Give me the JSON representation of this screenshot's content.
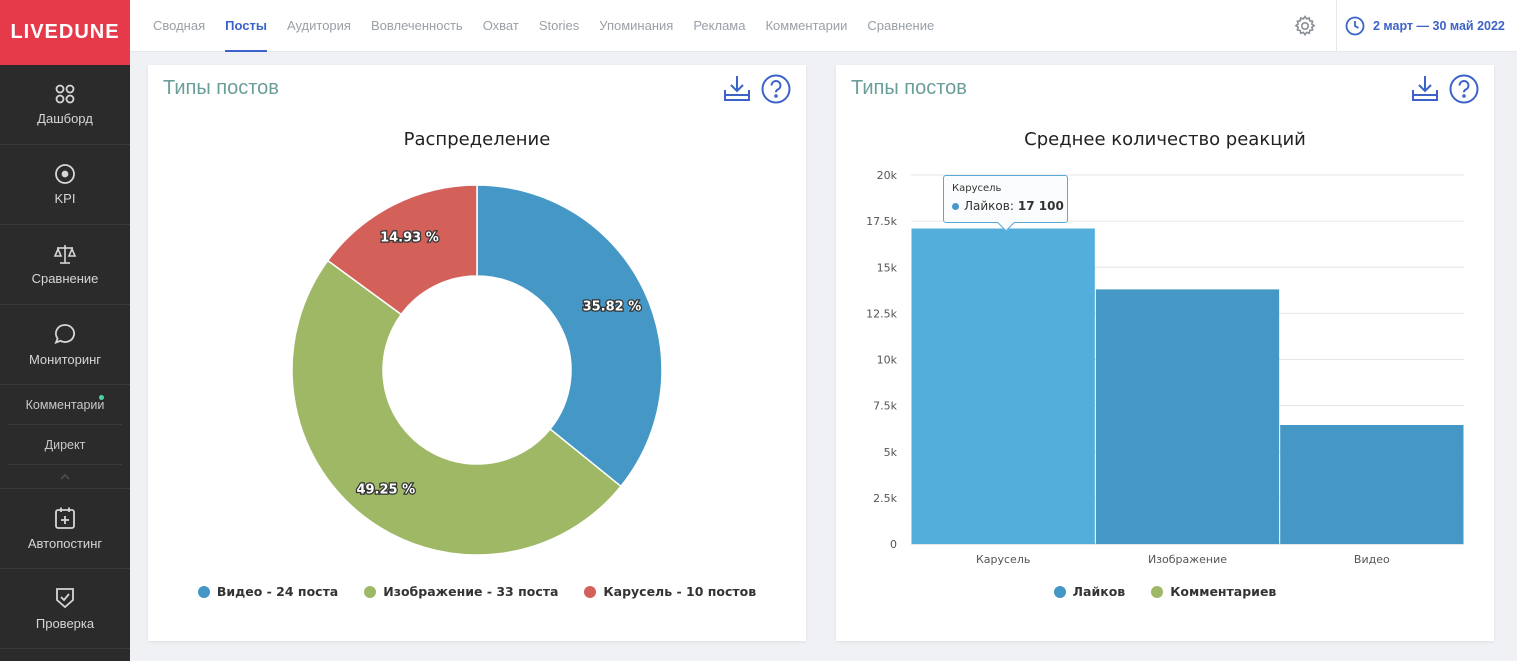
{
  "sidebar": {
    "logo": "LIVEDUNE",
    "items": [
      {
        "label": "Дашборд",
        "icon": "dashboard-icon"
      },
      {
        "label": "KPI",
        "icon": "target-icon"
      },
      {
        "label": "Сравнение",
        "icon": "scales-icon"
      },
      {
        "label": "Мониторинг",
        "icon": "chat-bubble-icon"
      }
    ],
    "sub_items": [
      {
        "label": "Комментарии",
        "has_dot": true
      },
      {
        "label": "Директ",
        "has_dot": false
      }
    ],
    "bottom_items": [
      {
        "label": "Автопостинг",
        "icon": "calendar-plus-icon"
      },
      {
        "label": "Проверка",
        "icon": "shield-check-icon"
      }
    ]
  },
  "topnav": {
    "tabs": [
      "Сводная",
      "Посты",
      "Аудитория",
      "Вовлеченность",
      "Охват",
      "Stories",
      "Упоминания",
      "Реклама",
      "Комментарии",
      "Сравнение"
    ],
    "active_tab": "Посты",
    "date_range": "2 март — 30 май 2022"
  },
  "card1": {
    "title": "Типы постов",
    "chart_title": "Распределение",
    "legend": [
      {
        "label": "Видео - 24 поста",
        "color": "#4598c6"
      },
      {
        "label": "Изображение - 33 поста",
        "color": "#9fb866"
      },
      {
        "label": "Карусель - 10 постов",
        "color": "#d4605a"
      }
    ]
  },
  "card2": {
    "title": "Типы постов",
    "chart_title": "Среднее количество реакций",
    "legend": [
      {
        "label": "Лайков",
        "color": "#4598c6"
      },
      {
        "label": "Комментариев",
        "color": "#9fb866"
      }
    ],
    "tooltip": {
      "category": "Карусель",
      "series": "Лайков:",
      "value": "17 100"
    }
  },
  "chart_data": [
    {
      "type": "pie",
      "title": "Распределение",
      "categories": [
        "Видео",
        "Изображение",
        "Карусель"
      ],
      "values": [
        35.82,
        49.25,
        14.93
      ],
      "labels": [
        "35.82 %",
        "49.25 %",
        "14.93 %"
      ],
      "colors": [
        "#4598c6",
        "#9fb866",
        "#d4605a"
      ],
      "donut": true
    },
    {
      "type": "bar",
      "title": "Среднее количество реакций",
      "categories": [
        "Карусель",
        "Изображение",
        "Видео"
      ],
      "series": [
        {
          "name": "Лайков",
          "values": [
            17100,
            13800,
            6450
          ],
          "colors": [
            "#53aedb",
            "#4598c6",
            "#4598c6"
          ]
        },
        {
          "name": "Комментариев",
          "values": [
            0,
            0,
            0
          ],
          "color": "#9fb866"
        }
      ],
      "ylim": [
        0,
        20000
      ],
      "yticks": [
        0,
        2500,
        5000,
        7500,
        10000,
        12500,
        15000,
        17500,
        20000
      ],
      "ytick_labels": [
        "0",
        "2.5k",
        "5k",
        "7.5k",
        "10k",
        "12.5k",
        "15k",
        "17.5k",
        "20k"
      ],
      "grid": true,
      "legend": "bottom"
    }
  ]
}
